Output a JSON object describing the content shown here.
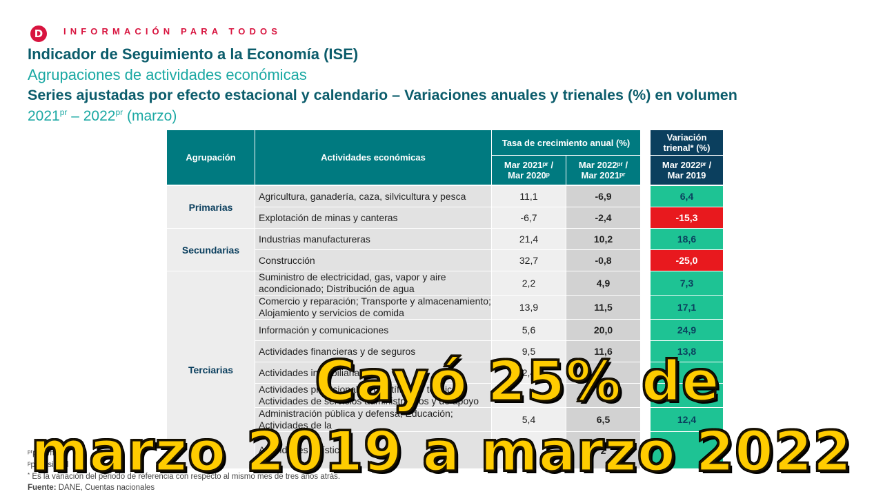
{
  "brand": {
    "logo_letter": "D",
    "tagline": "INFORMACIÓN PARA TODOS",
    "color": "#d8143f"
  },
  "title": {
    "line1": "Indicador de Seguimiento a la Economía (ISE)",
    "line2": "Agrupaciones de actividades económicas",
    "line3": "Series ajustadas por efecto estacional y calendario – Variaciones anuales y trienales (%) en volumen",
    "line4_a": "2021",
    "line4_sup_a": "pr",
    "line4_b": " – 2022",
    "line4_sup_b": "pr",
    "line4_c": " (marzo)"
  },
  "table": {
    "headers": {
      "agrupacion": "Agrupación",
      "actividades": "Actividades económicas",
      "tasa": "Tasa de crecimiento anual (%)",
      "col1": "Mar 2021ᵖʳ / Mar 2020ᵖ",
      "col2": "Mar 2022ᵖʳ / Mar 2021ᵖʳ",
      "trienal": "Variación trienal* (%)",
      "col3": "Mar 2022ᵖʳ / Mar 2019"
    },
    "groups": [
      "Primarias",
      "Secundarias",
      "Terciarias"
    ],
    "rows": [
      {
        "activity": "Agricultura, ganadería, caza, silvicultura y pesca",
        "v1": "11,1",
        "v2": "-6,9",
        "v3": "6,4"
      },
      {
        "activity": "Explotación de minas y canteras",
        "v1": "-6,7",
        "v2": "-2,4",
        "v3": "-15,3"
      },
      {
        "activity": "Industrias manufactureras",
        "v1": "21,4",
        "v2": "10,2",
        "v3": "18,6"
      },
      {
        "activity": "Construcción",
        "v1": "32,7",
        "v2": "-0,8",
        "v3": "-25,0"
      },
      {
        "activity": "Suministro de electricidad, gas, vapor y aire acondicionado; Distribución de agua",
        "v1": "2,2",
        "v2": "4,9",
        "v3": "7,3"
      },
      {
        "activity": "Comercio y reparación; Transporte y almacenamiento; Alojamiento y servicios de comida",
        "v1": "13,9",
        "v2": "11,5",
        "v3": "17,1"
      },
      {
        "activity": "Información y comunicaciones",
        "v1": "5,6",
        "v2": "20,0",
        "v3": "24,9"
      },
      {
        "activity": "Actividades financieras y de seguros",
        "v1": "9,5",
        "v2": "11,6",
        "v3": "13,8"
      },
      {
        "activity": "Actividades inmobiliarias",
        "v1": "2,4",
        "v2": "",
        "v3": ""
      },
      {
        "activity": "Actividades profesionales, científicas y técnicas; Actividades de servicios administrativos y de apoyo",
        "v1": "",
        "v2": "7,",
        "v3": ""
      },
      {
        "activity": "Administración pública y defensa; Educación; Actividades de la",
        "v1": "5,4",
        "v2": "6,5",
        "v3": "12,4"
      },
      {
        "activity": "Actividades artísticas",
        "v1": "2",
        "v2": "2",
        "v3": ""
      }
    ]
  },
  "footnotes": {
    "pr_sup": "pr",
    "pr": "preliminar",
    "p_sup": "p",
    "p": "provisional",
    "star_sup": "*",
    "star": " Es la variación del periodo de referencia con respecto al mismo mes de tres años atrás.",
    "source_label": "Fuente:",
    "source": " DANE, Cuentas nacionales"
  },
  "overlay": {
    "line1": "Cayó 25% de",
    "line2": "marzo 2019 a marzo 2022"
  },
  "colors": {
    "header_teal": "#007a80",
    "header_navy": "#0b3f5e",
    "positive": "#1ec394",
    "negative": "#e8191e",
    "overlay_text": "#ffcc00"
  }
}
